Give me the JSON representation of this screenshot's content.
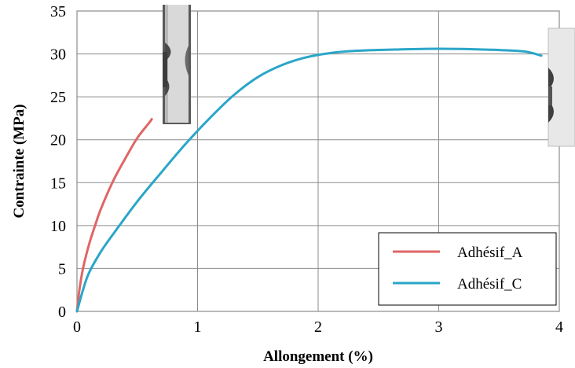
{
  "chart_data": {
    "type": "line",
    "title": "",
    "xlabel": "Allongement (%)",
    "ylabel": "Contrainte (MPa)",
    "xlim": [
      0,
      4
    ],
    "ylim": [
      0,
      35
    ],
    "xticks": [
      0,
      1,
      2,
      3,
      4
    ],
    "yticks": [
      0,
      5,
      10,
      15,
      20,
      25,
      30,
      35
    ],
    "grid": true,
    "legend_position": "bottom-right",
    "series": [
      {
        "name": "Adhésif_A",
        "color": "#e06666",
        "x": [
          0,
          0.02,
          0.05,
          0.1,
          0.15,
          0.2,
          0.3,
          0.4,
          0.5,
          0.6,
          0.62
        ],
        "y": [
          0,
          2.5,
          5,
          7.8,
          10,
          12,
          15.2,
          17.8,
          20.2,
          22,
          22.4
        ]
      },
      {
        "name": "Adhésif_C",
        "color": "#2aa6c8",
        "x": [
          0,
          0.05,
          0.1,
          0.2,
          0.3,
          0.5,
          0.7,
          0.9,
          1.1,
          1.3,
          1.5,
          1.7,
          1.9,
          2.1,
          2.3,
          2.6,
          3.0,
          3.4,
          3.7,
          3.85
        ],
        "y": [
          0,
          2.5,
          4.5,
          7,
          9,
          12.8,
          16.2,
          19.5,
          22.5,
          25.2,
          27.3,
          28.7,
          29.6,
          30.1,
          30.35,
          30.5,
          30.6,
          30.5,
          30.3,
          29.8
        ]
      }
    ]
  },
  "images": [
    {
      "icon": "specimen-photo-icon",
      "near": "end of Adhésif_A"
    },
    {
      "icon": "specimen-photo-icon",
      "near": "end of Adhésif_C"
    }
  ]
}
